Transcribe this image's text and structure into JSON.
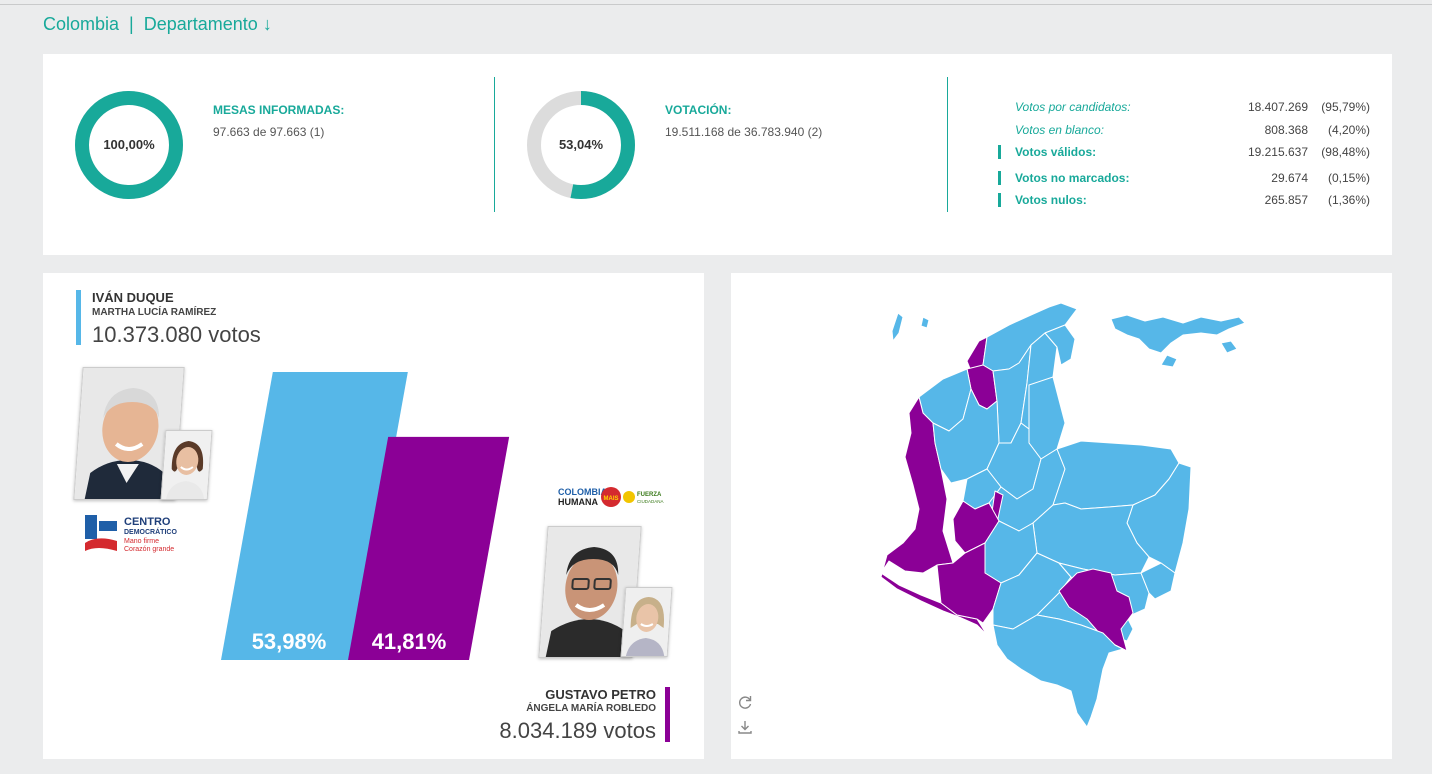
{
  "breadcrumb": {
    "country": "Colombia",
    "separator": "|",
    "level": "Departamento",
    "level_icon": "↓"
  },
  "summary": {
    "mesas": {
      "title": "MESAS INFORMADAS:",
      "value": "97.663 de 97.663 (1)",
      "percent_label": "100,00%",
      "fraction": 1.0
    },
    "votacion": {
      "title": "VOTACIÓN:",
      "value": "19.511.168 de 36.783.940 (2)",
      "percent_label": "53,04%",
      "fraction": 0.5304
    },
    "breakdown": [
      {
        "label": "Votos por candidatos:",
        "number": "18.407.269",
        "pct": "(95,79%)",
        "style": "italic"
      },
      {
        "label": "Votos en blanco:",
        "number": "808.368",
        "pct": "(4,20%)",
        "style": "italic"
      },
      {
        "label": "Votos válidos:",
        "number": "19.215.637",
        "pct": "(98,48%)",
        "style": "bold"
      },
      {
        "label": "Votos no marcados:",
        "number": "29.674",
        "pct": "(0,15%)",
        "style": "bold"
      },
      {
        "label": "Votos nulos:",
        "number": "265.857",
        "pct": "(1,36%)",
        "style": "bold"
      }
    ]
  },
  "candidates": [
    {
      "name": "IVÁN DUQUE",
      "vice": "MARTHA LUCÍA RAMÍREZ",
      "votes": "10.373.080 votos",
      "percent_label": "53,98%",
      "percent": 53.98,
      "color": "#56b7e8",
      "party": {
        "line1": "CENTRO",
        "line2": "DEMOCRÁTICO",
        "slogan1": "Mano firme",
        "slogan2": "Corazón grande"
      }
    },
    {
      "name": "GUSTAVO PETRO",
      "vice": "ÁNGELA MARÍA ROBLEDO",
      "votes": "8.034.189 votos",
      "percent_label": "41,81%",
      "percent": 41.81,
      "color": "#8b0096",
      "party": {
        "logo1_top": "COLOMBIA",
        "logo1_bottom": "HUMANA",
        "logo2": "MAIS",
        "logo3_top": "FUERZA",
        "logo3_bottom": "CIUDADANA"
      }
    }
  ],
  "colors": {
    "accent": "#18a99a",
    "duque": "#56b7e8",
    "petro": "#8b0096",
    "ring_bg": "#dcdcdc"
  },
  "map_tools": {
    "refresh_icon": "refresh-icon",
    "download_icon": "download-icon"
  }
}
